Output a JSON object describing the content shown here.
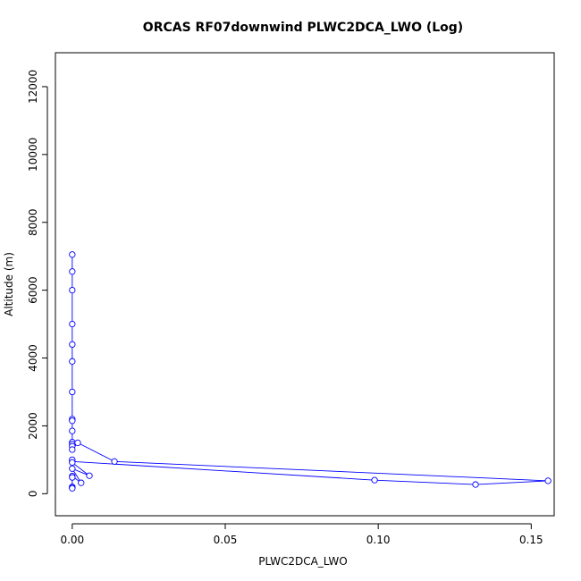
{
  "chart_data": {
    "type": "line",
    "title": "ORCAS RF07downwind PLWC2DCA_LWO (Log)",
    "xlabel": "PLWC2DCA_LWO",
    "ylabel": "Altitude (m)",
    "xlim": [
      -0.0055,
      0.1575
    ],
    "ylim": [
      -650,
      13000
    ],
    "x_ticks": [
      0.0,
      0.05,
      0.1,
      0.15
    ],
    "x_tick_labels": [
      "0.00",
      "0.05",
      "0.10",
      "0.15"
    ],
    "y_ticks": [
      0,
      2000,
      4000,
      6000,
      8000,
      10000,
      12000
    ],
    "y_tick_labels": [
      "0",
      "2000",
      "4000",
      "6000",
      "8000",
      "10000",
      "12000"
    ],
    "grid": false,
    "series": [
      {
        "color": "#0000ff",
        "marker": "open-circle",
        "points": [
          {
            "x": 0.0,
            "y": 7050
          },
          {
            "x": 0.0,
            "y": 6550
          },
          {
            "x": 0.0,
            "y": 6000
          },
          {
            "x": 0.0,
            "y": 5000
          },
          {
            "x": 0.0,
            "y": 4400
          },
          {
            "x": 0.0,
            "y": 3900
          },
          {
            "x": 0.0,
            "y": 3000
          },
          {
            "x": 0.0,
            "y": 2200
          },
          {
            "x": 0.0,
            "y": 2150
          },
          {
            "x": 0.0,
            "y": 1850
          },
          {
            "x": 0.0,
            "y": 1520
          },
          {
            "x": 0.0,
            "y": 1460
          },
          {
            "x": 0.0,
            "y": 1400
          },
          {
            "x": 0.0,
            "y": 1300
          },
          {
            "x": 0.0018,
            "y": 1500
          },
          {
            "x": 0.0138,
            "y": 950
          },
          {
            "x": 0.1555,
            "y": 380
          },
          {
            "x": 0.1318,
            "y": 270
          },
          {
            "x": 0.0988,
            "y": 400
          },
          {
            "x": 0.0,
            "y": 950
          },
          {
            "x": 0.0,
            "y": 1000
          },
          {
            "x": 0.0,
            "y": 920
          },
          {
            "x": 0.0056,
            "y": 530
          },
          {
            "x": 0.0,
            "y": 740
          },
          {
            "x": 0.0029,
            "y": 320
          },
          {
            "x": 0.0,
            "y": 520
          },
          {
            "x": 0.0,
            "y": 480
          },
          {
            "x": 0.0,
            "y": 200
          },
          {
            "x": 0.0,
            "y": 170
          },
          {
            "x": 0.0,
            "y": 160
          }
        ]
      }
    ]
  }
}
